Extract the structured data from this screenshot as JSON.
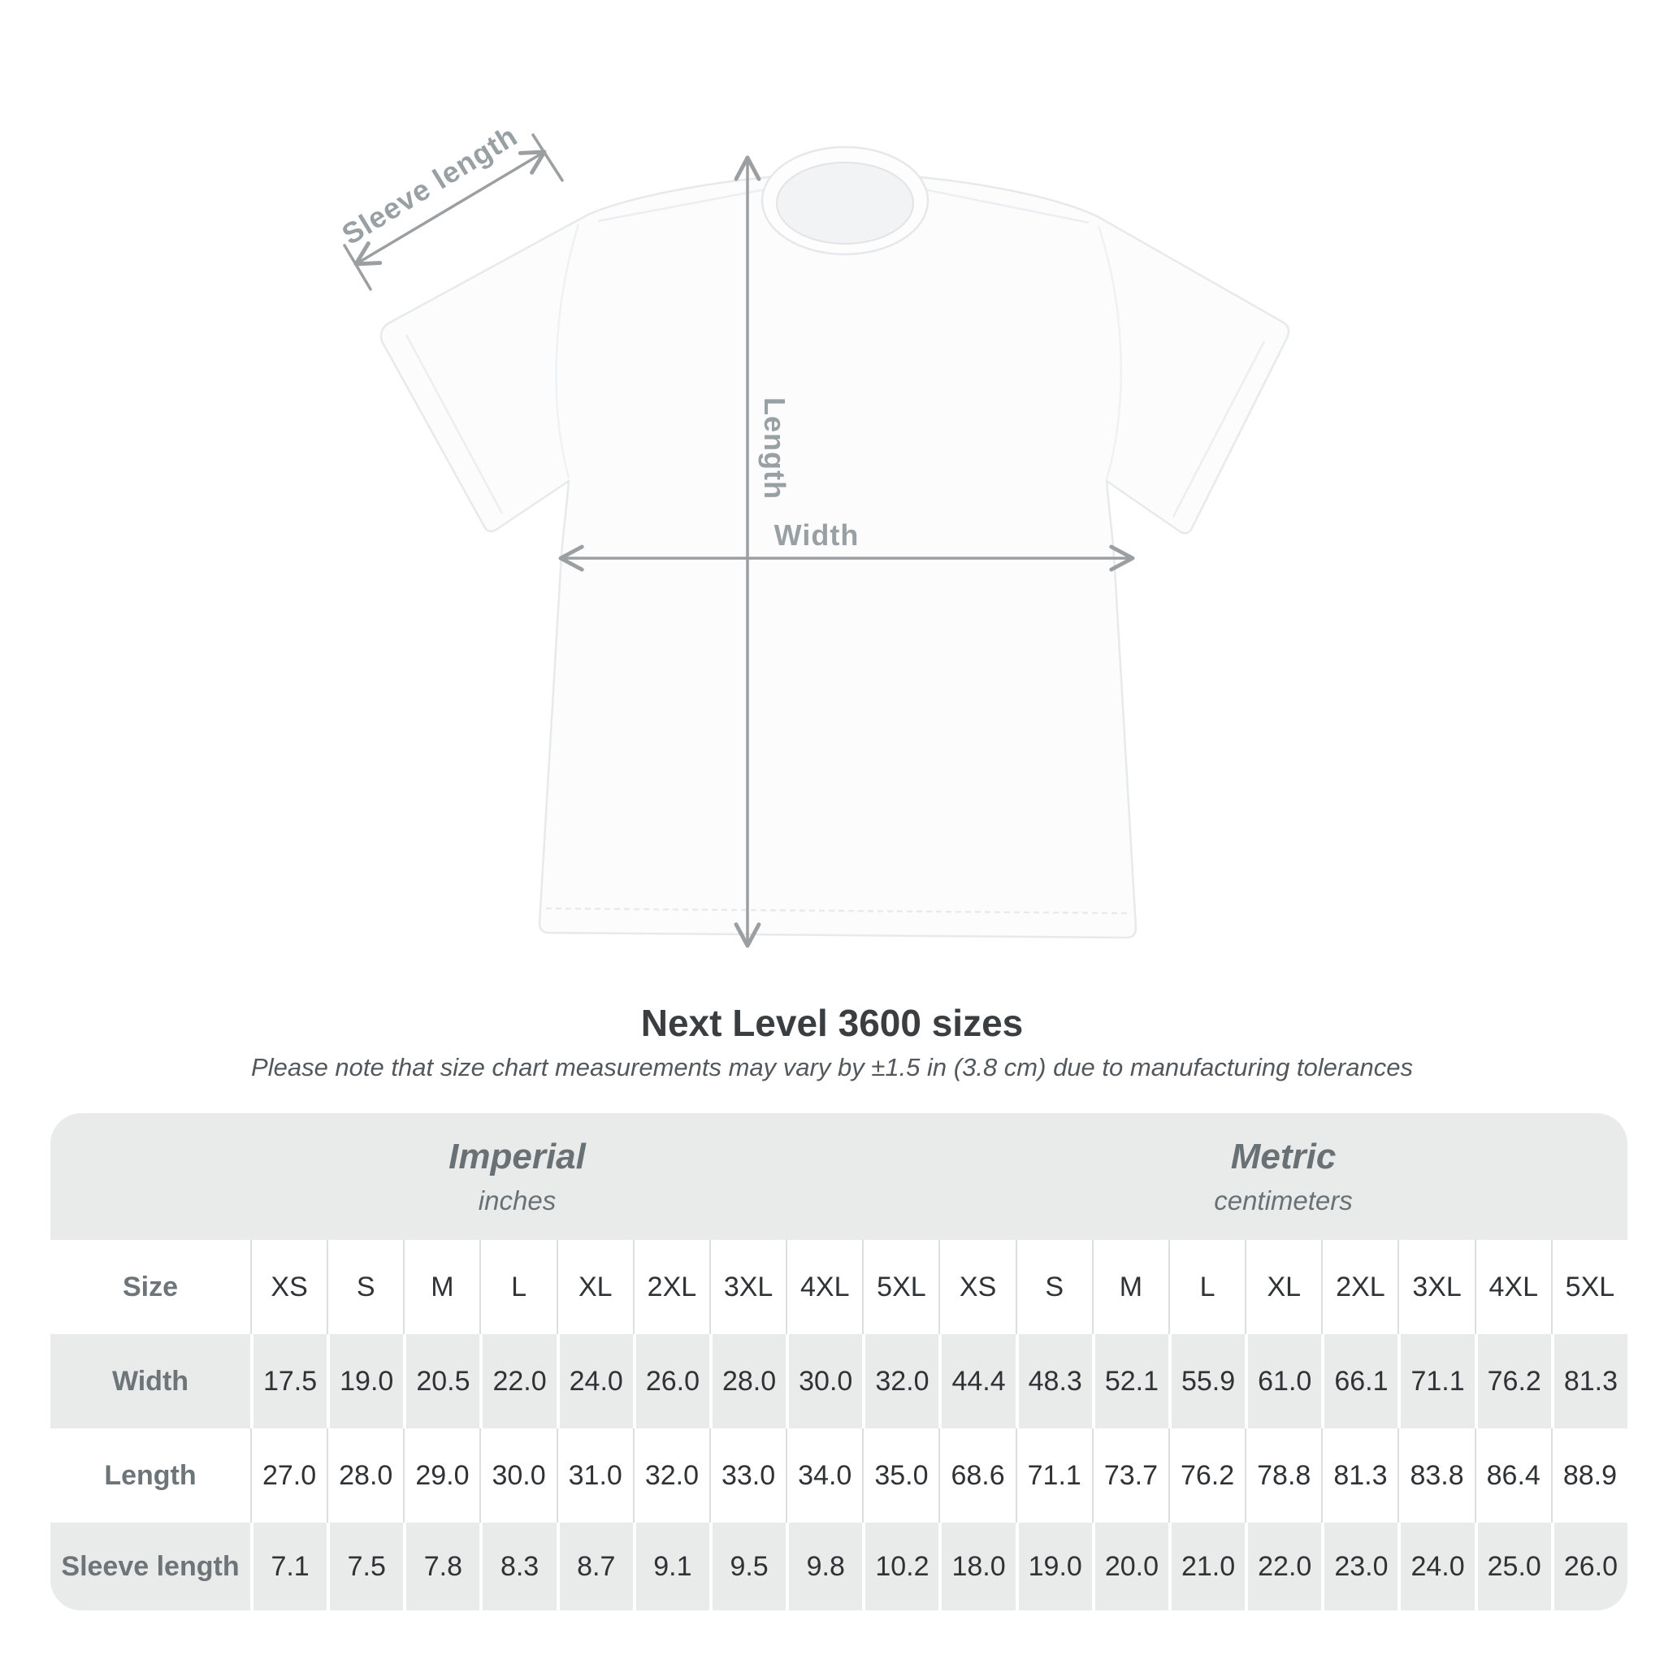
{
  "diagram": {
    "sleeve_length_label": "Sleeve length",
    "length_label": "Length",
    "width_label": "Width"
  },
  "title": "Next Level 3600 sizes",
  "subtitle": "Please note that size chart measurements may vary by ±1.5 in (3.8 cm) due to manufacturing tolerances",
  "table": {
    "imperial_label": "Imperial",
    "imperial_unit": "inches",
    "metric_label": "Metric",
    "metric_unit": "centimeters",
    "size_col_header": "Size"
  },
  "chart_data": {
    "type": "table",
    "title": "Next Level 3600 sizes",
    "subtitle": "Please note that size chart measurements may vary by ±1.5 in (3.8 cm) due to manufacturing tolerances",
    "unit_groups": [
      {
        "label": "Imperial",
        "unit": "inches"
      },
      {
        "label": "Metric",
        "unit": "centimeters"
      }
    ],
    "sizes": [
      "XS",
      "S",
      "M",
      "L",
      "XL",
      "2XL",
      "3XL",
      "4XL",
      "5XL"
    ],
    "rows": [
      {
        "label": "Width",
        "imperial": [
          "17.5",
          "19.0",
          "20.5",
          "22.0",
          "24.0",
          "26.0",
          "28.0",
          "30.0",
          "32.0"
        ],
        "metric": [
          "44.4",
          "48.3",
          "52.1",
          "55.9",
          "61.0",
          "66.1",
          "71.1",
          "76.2",
          "81.3"
        ]
      },
      {
        "label": "Length",
        "imperial": [
          "27.0",
          "28.0",
          "29.0",
          "30.0",
          "31.0",
          "32.0",
          "33.0",
          "34.0",
          "35.0"
        ],
        "metric": [
          "68.6",
          "71.1",
          "73.7",
          "76.2",
          "78.8",
          "81.3",
          "83.8",
          "86.4",
          "88.9"
        ]
      },
      {
        "label": "Sleeve length",
        "imperial": [
          "7.1",
          "7.5",
          "7.8",
          "8.3",
          "8.7",
          "9.1",
          "9.5",
          "9.8",
          "10.2"
        ],
        "metric": [
          "18.0",
          "19.0",
          "20.0",
          "21.0",
          "22.0",
          "23.0",
          "24.0",
          "25.0",
          "26.0"
        ]
      }
    ]
  },
  "colors": {
    "table_gray": "#e9eaea",
    "label_gray": "#6e7579",
    "value_dark": "#2f3336",
    "arrow_gray": "#9b9fa1"
  }
}
